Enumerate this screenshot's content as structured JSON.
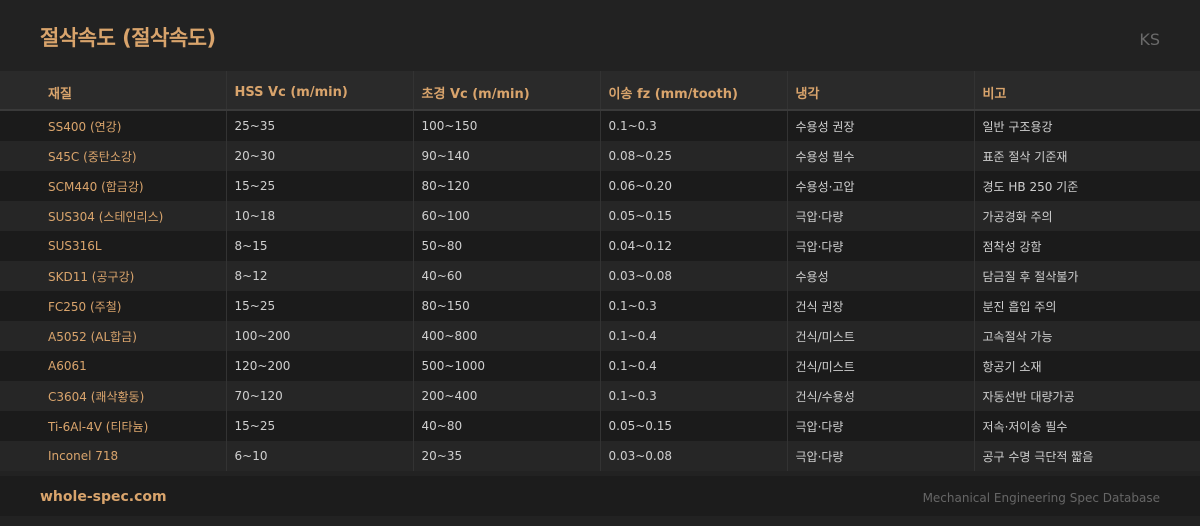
{
  "header": {
    "title": "절삭속도 (절삭속도)",
    "standard": "KS"
  },
  "table": {
    "columns": [
      "재질",
      "HSS Vc (m/min)",
      "초경 Vc (m/min)",
      "이송 fz (mm/tooth)",
      "냉각",
      "비고"
    ],
    "rows": [
      [
        "SS400 (연강)",
        "25~35",
        "100~150",
        "0.1~0.3",
        "수용성 권장",
        "일반 구조용강"
      ],
      [
        "S45C (중탄소강)",
        "20~30",
        "90~140",
        "0.08~0.25",
        "수용성 필수",
        "표준 절삭 기준재"
      ],
      [
        "SCM440 (합금강)",
        "15~25",
        "80~120",
        "0.06~0.20",
        "수용성·고압",
        "경도 HB 250 기준"
      ],
      [
        "SUS304 (스테인리스)",
        "10~18",
        "60~100",
        "0.05~0.15",
        "극압·다량",
        "가공경화 주의"
      ],
      [
        "SUS316L",
        "8~15",
        "50~80",
        "0.04~0.12",
        "극압·다량",
        "점착성 강함"
      ],
      [
        "SKD11 (공구강)",
        "8~12",
        "40~60",
        "0.03~0.08",
        "수용성",
        "담금질 후 절삭불가"
      ],
      [
        "FC250 (주철)",
        "15~25",
        "80~150",
        "0.1~0.3",
        "건식 권장",
        "분진 흡입 주의"
      ],
      [
        "A5052 (AL합금)",
        "100~200",
        "400~800",
        "0.1~0.4",
        "건식/미스트",
        "고속절삭 가능"
      ],
      [
        "A6061",
        "120~200",
        "500~1000",
        "0.1~0.4",
        "건식/미스트",
        "항공기 소재"
      ],
      [
        "C3604 (쾌삭황동)",
        "70~120",
        "200~400",
        "0.1~0.3",
        "건식/수용성",
        "자동선반 대량가공"
      ],
      [
        "Ti-6Al-4V (티타늄)",
        "15~25",
        "40~80",
        "0.05~0.15",
        "극압·다량",
        "저속·저이송 필수"
      ],
      [
        "Inconel 718",
        "6~10",
        "20~35",
        "0.03~0.08",
        "극압·다량",
        "공구 수명 극단적 짧음"
      ]
    ]
  },
  "footer": {
    "site": "whole-spec.com",
    "database": "Mechanical Engineering Spec Database"
  },
  "colors": {
    "accent": "#d9a46c",
    "background": "#222222"
  }
}
